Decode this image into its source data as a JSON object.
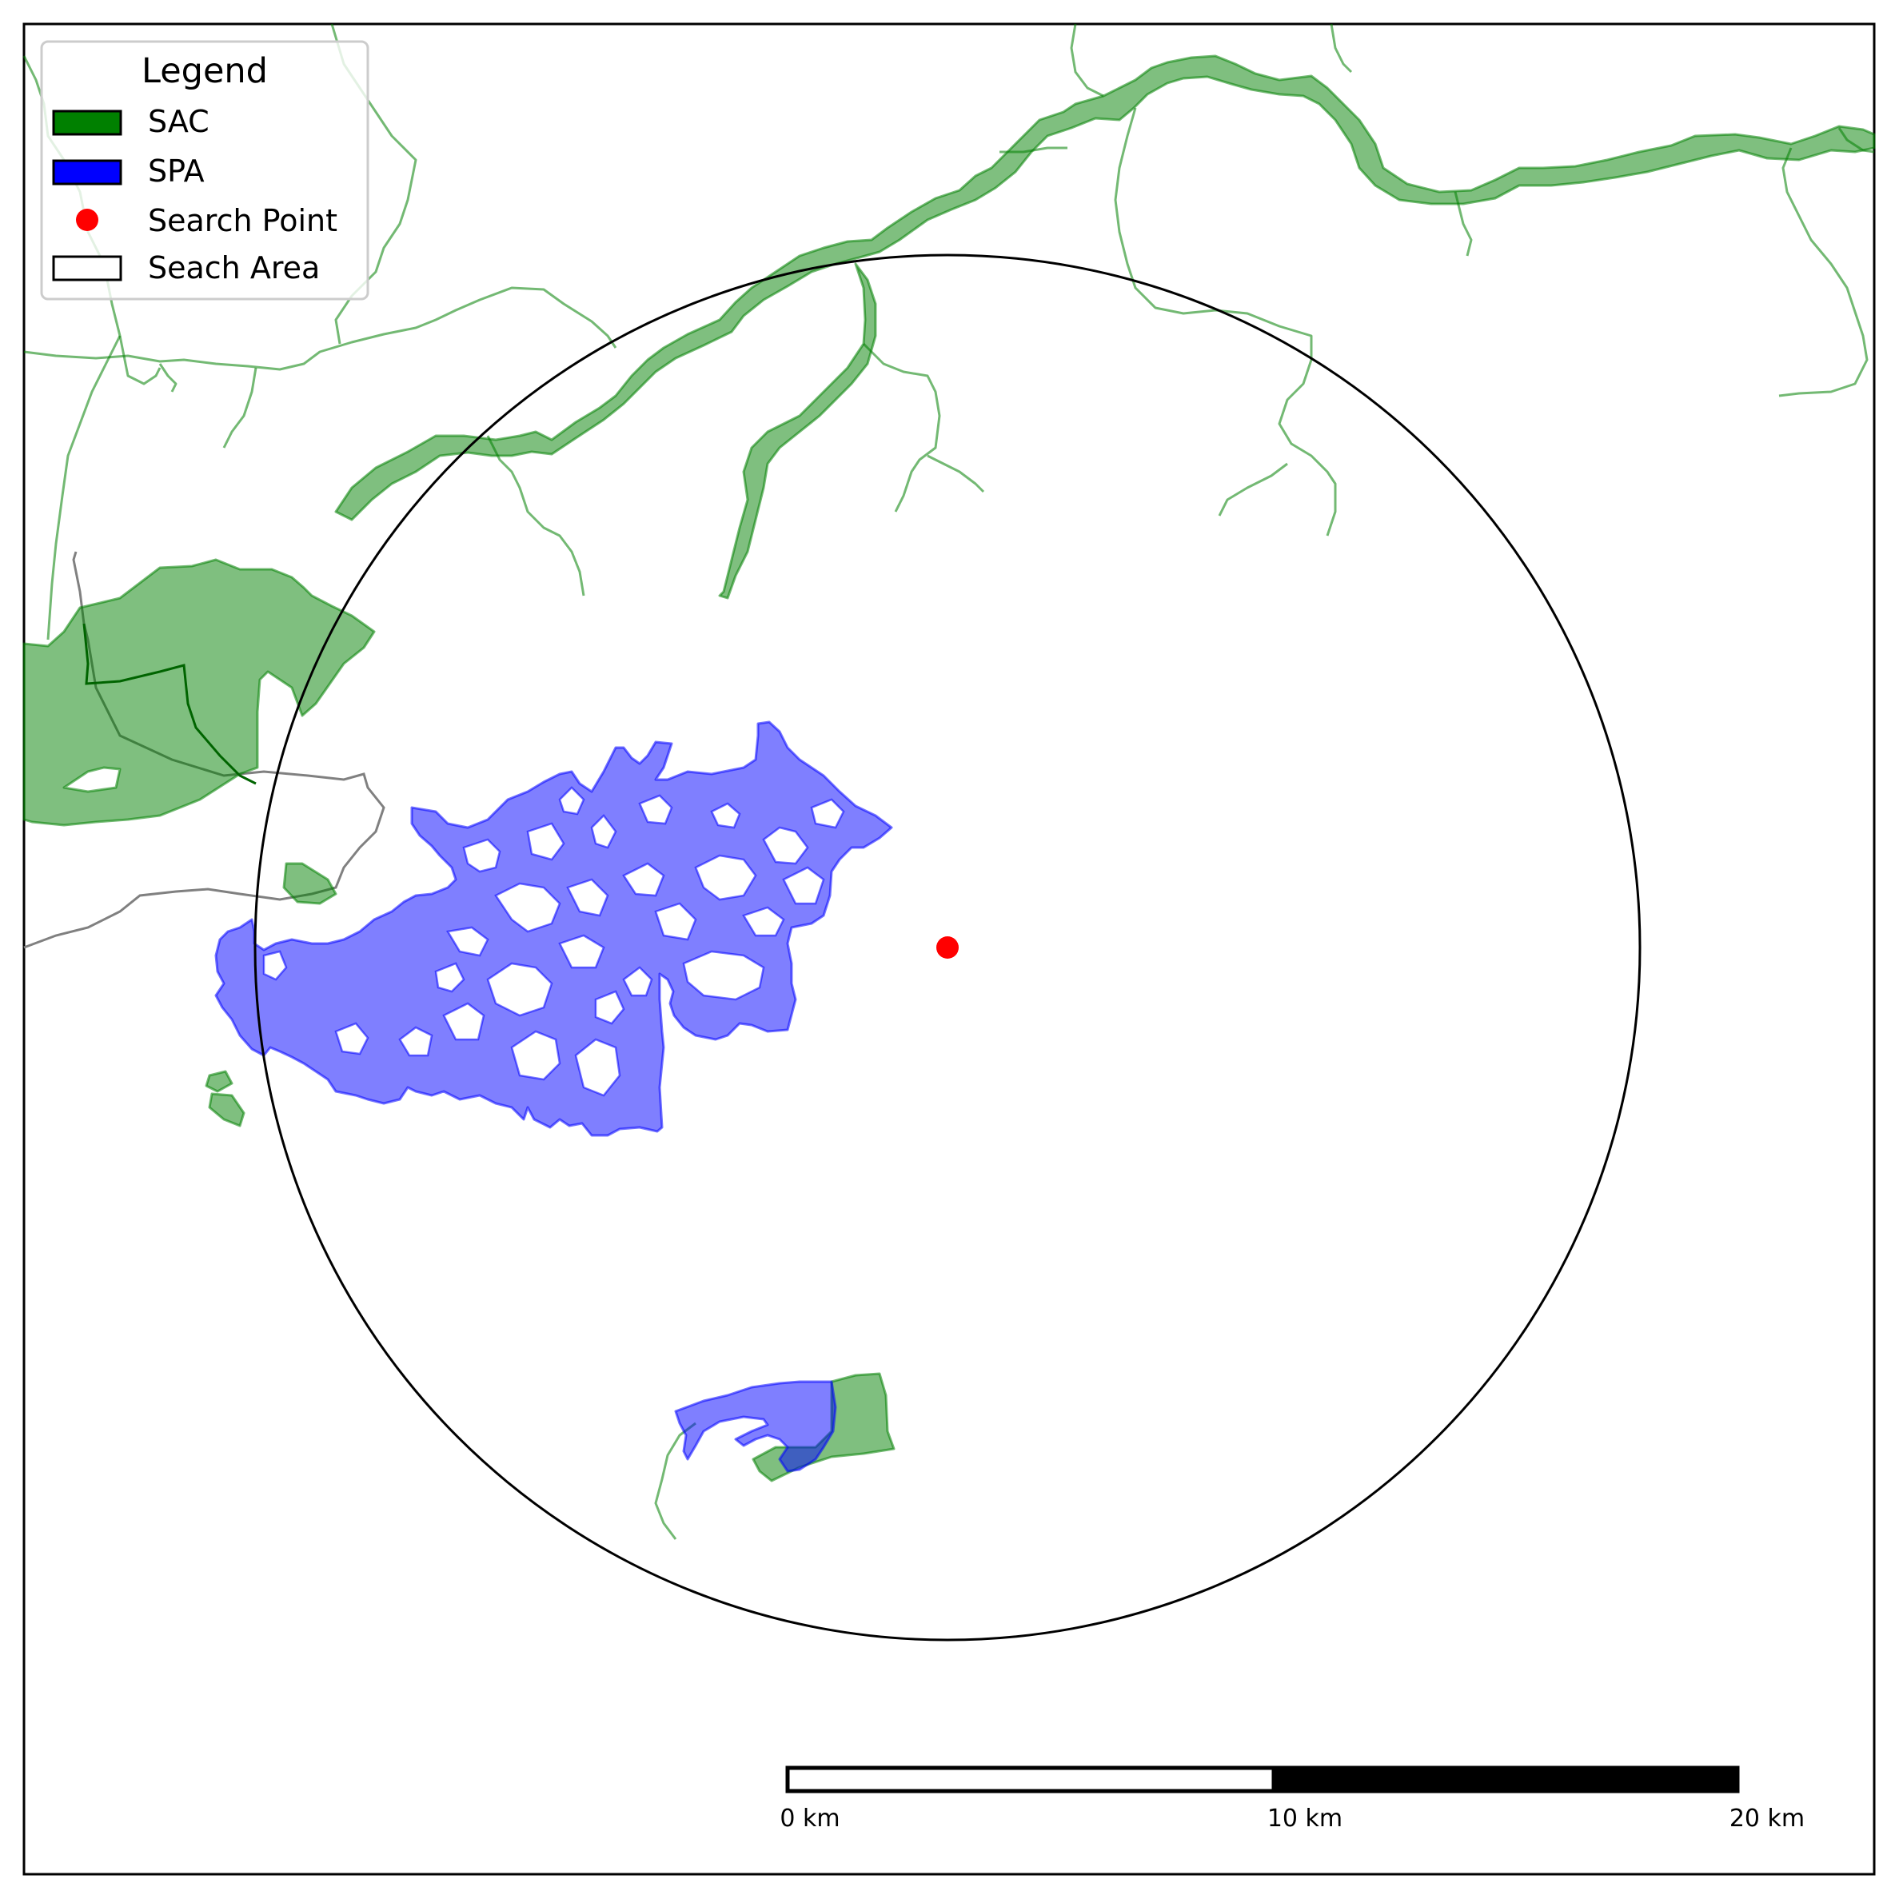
{
  "legend": {
    "title": "Legend",
    "items": [
      {
        "label": "SAC",
        "swatch": "box",
        "color": "#008000"
      },
      {
        "label": "SPA",
        "swatch": "box",
        "color": "#0000ff"
      },
      {
        "label": "Search Point",
        "swatch": "dot",
        "color": "#ff0000"
      },
      {
        "label": "Seach Area",
        "swatch": "box-outline",
        "color": "#000000"
      }
    ]
  },
  "scale_bar": {
    "labels": [
      "0 km",
      "10 km",
      "20 km"
    ],
    "segment_colors": [
      "#ffffff",
      "#000000"
    ]
  },
  "colors": {
    "sac_fill": "#008000",
    "spa_fill": "#0000ff",
    "search_point": "#ff0000",
    "search_area_stroke": "#000000",
    "boundary_line": "#808080"
  }
}
